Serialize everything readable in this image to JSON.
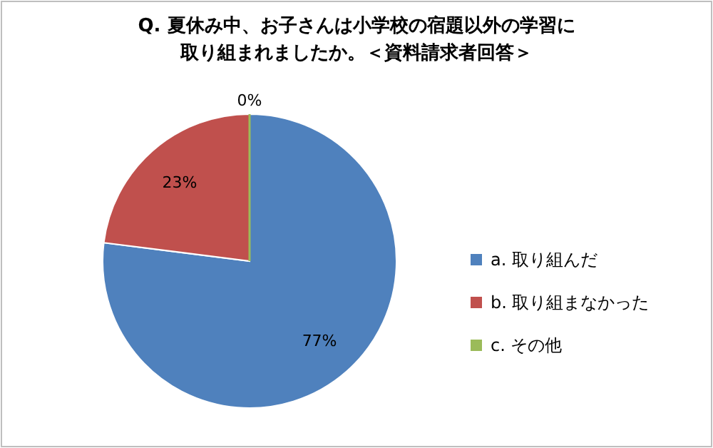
{
  "chart_data": {
    "type": "pie",
    "title": "Q. 夏休み中、お子さんは小学校の宿題以外の学習に取り組まれましたか。＜資料請求者回答＞",
    "categories": [
      "a. 取り組んだ",
      "b. 取り組まなかった",
      "c. その他"
    ],
    "values": [
      77,
      23,
      0
    ],
    "colors": [
      "#4f81bd",
      "#c0504d",
      "#9bbb59"
    ],
    "value_labels": [
      "77%",
      "23%",
      "0%"
    ],
    "legend": "right"
  }
}
